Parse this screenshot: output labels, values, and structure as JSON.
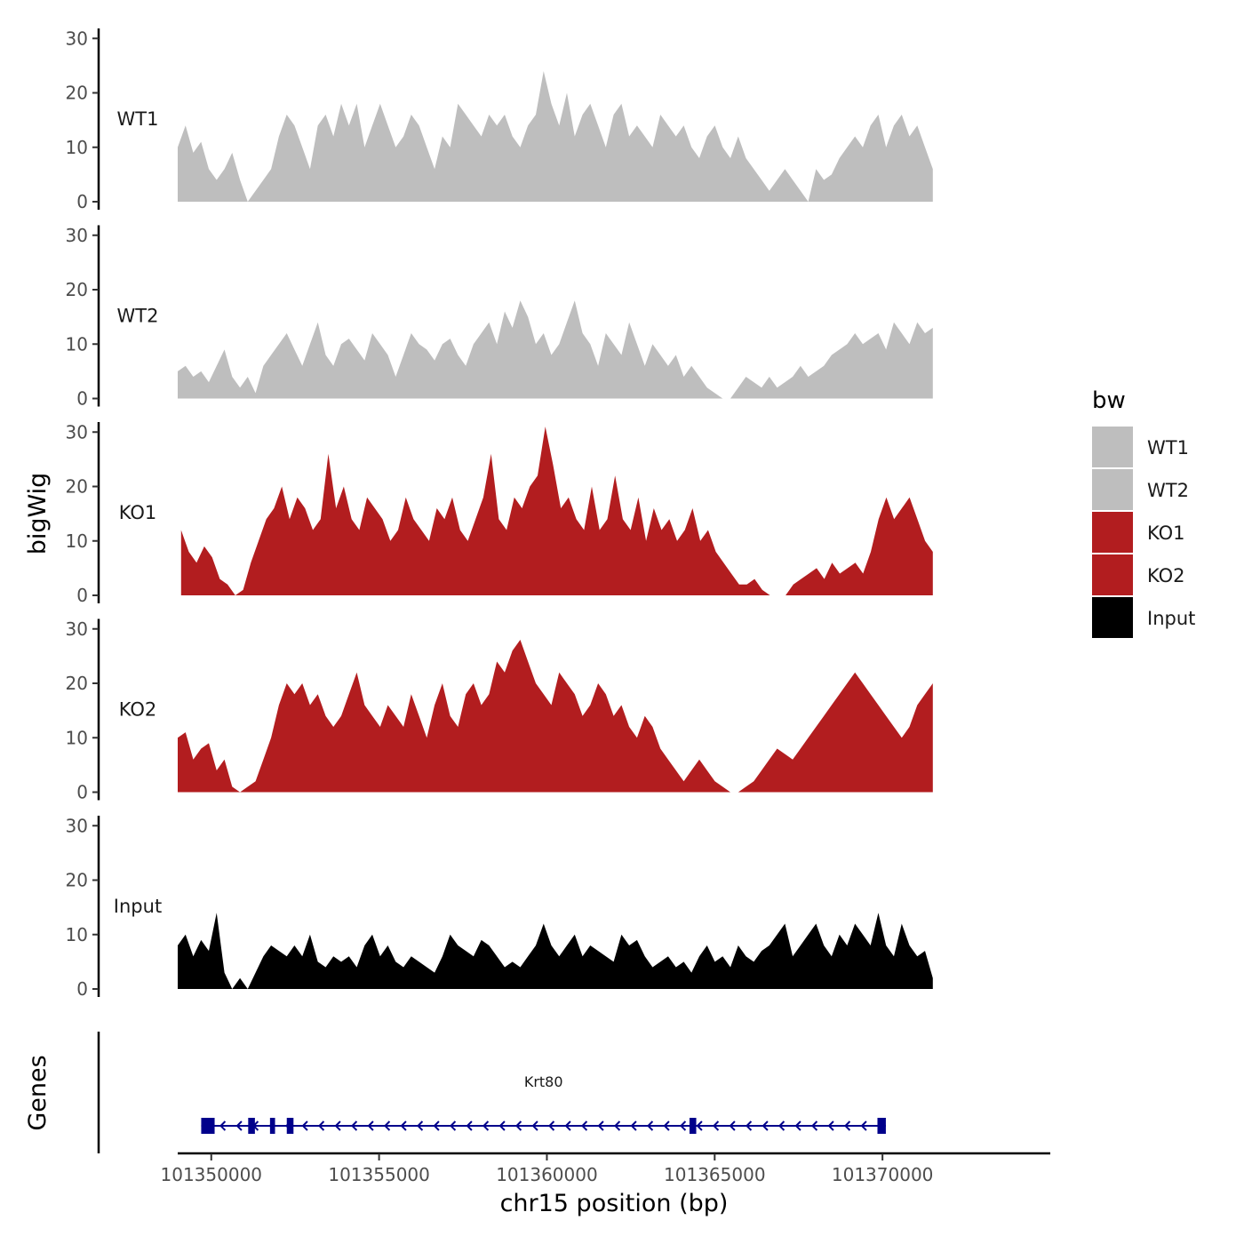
{
  "chart_data": {
    "type": "area",
    "y_axis_title": "bigWig",
    "x_axis_title": "chr15 position (bp)",
    "x_range": [
      101349000,
      101375000
    ],
    "x_ticks": [
      101350000,
      101355000,
      101360000,
      101365000,
      101370000
    ],
    "x_tick_labels": [
      "101350000",
      "101355000",
      "101360000",
      "101365000",
      "101370000"
    ],
    "y_range": [
      0,
      32
    ],
    "y_ticks": [
      0,
      10,
      20,
      30
    ],
    "y_tick_labels": [
      "0",
      "10",
      "20",
      "30"
    ],
    "tracks": [
      {
        "name": "WT1",
        "color": "#bebebe",
        "x_start": 101349000,
        "x_end": 101371500,
        "values": [
          10,
          14,
          9,
          11,
          6,
          4,
          6,
          9,
          4,
          0,
          2,
          4,
          6,
          12,
          16,
          14,
          10,
          6,
          14,
          16,
          12,
          18,
          14,
          18,
          10,
          14,
          18,
          14,
          10,
          12,
          16,
          14,
          10,
          6,
          12,
          10,
          18,
          16,
          14,
          12,
          16,
          14,
          16,
          12,
          10,
          14,
          16,
          24,
          18,
          14,
          20,
          12,
          16,
          18,
          14,
          10,
          16,
          18,
          12,
          14,
          12,
          10,
          16,
          14,
          12,
          14,
          10,
          8,
          12,
          14,
          10,
          8,
          12,
          8,
          6,
          4,
          2,
          4,
          6,
          4,
          2,
          0,
          6,
          4,
          5,
          8,
          10,
          12,
          10,
          14,
          16,
          10,
          14,
          16,
          12,
          14,
          10,
          6
        ]
      },
      {
        "name": "WT2",
        "color": "#bebebe",
        "x_start": 101349000,
        "x_end": 101371500,
        "values": [
          5,
          6,
          4,
          5,
          3,
          6,
          9,
          4,
          2,
          4,
          1,
          6,
          8,
          10,
          12,
          9,
          6,
          10,
          14,
          8,
          6,
          10,
          11,
          9,
          7,
          12,
          10,
          8,
          4,
          8,
          12,
          10,
          9,
          7,
          10,
          11,
          8,
          6,
          10,
          12,
          14,
          10,
          16,
          13,
          18,
          15,
          10,
          12,
          8,
          10,
          14,
          18,
          12,
          10,
          6,
          12,
          10,
          8,
          14,
          10,
          6,
          10,
          8,
          6,
          8,
          4,
          6,
          4,
          2,
          1,
          0,
          0,
          2,
          4,
          3,
          2,
          4,
          2,
          3,
          4,
          6,
          4,
          5,
          6,
          8,
          9,
          10,
          12,
          10,
          11,
          12,
          9,
          14,
          12,
          10,
          14,
          12,
          13
        ]
      },
      {
        "name": "KO1",
        "color": "#b21d1f",
        "x_start": 101349100,
        "x_end": 101371500,
        "values": [
          12,
          8,
          6,
          9,
          7,
          3,
          2,
          0,
          1,
          6,
          10,
          14,
          16,
          20,
          14,
          18,
          16,
          12,
          14,
          26,
          16,
          20,
          14,
          12,
          18,
          16,
          14,
          10,
          12,
          18,
          14,
          12,
          10,
          16,
          14,
          18,
          12,
          10,
          14,
          18,
          26,
          14,
          12,
          18,
          16,
          20,
          22,
          31,
          24,
          16,
          18,
          14,
          12,
          20,
          12,
          14,
          22,
          14,
          12,
          18,
          10,
          16,
          12,
          14,
          10,
          12,
          16,
          10,
          12,
          8,
          6,
          4,
          2,
          2,
          3,
          1,
          0,
          0,
          0,
          2,
          3,
          4,
          5,
          3,
          6,
          4,
          5,
          6,
          4,
          8,
          14,
          18,
          14,
          16,
          18,
          14,
          10,
          8
        ]
      },
      {
        "name": "KO2",
        "color": "#b21d1f",
        "x_start": 101349000,
        "x_end": 101371500,
        "values": [
          10,
          11,
          6,
          8,
          9,
          4,
          6,
          1,
          0,
          1,
          2,
          6,
          10,
          16,
          20,
          18,
          20,
          16,
          18,
          14,
          12,
          14,
          18,
          22,
          16,
          14,
          12,
          16,
          14,
          12,
          18,
          14,
          10,
          16,
          20,
          14,
          12,
          18,
          20,
          16,
          18,
          24,
          22,
          26,
          28,
          24,
          20,
          18,
          16,
          22,
          20,
          18,
          14,
          16,
          20,
          18,
          14,
          16,
          12,
          10,
          14,
          12,
          8,
          6,
          4,
          2,
          4,
          6,
          4,
          2,
          1,
          0,
          0,
          1,
          2,
          4,
          6,
          8,
          7,
          6,
          8,
          10,
          12,
          14,
          16,
          18,
          20,
          22,
          20,
          18,
          16,
          14,
          12,
          10,
          12,
          16,
          18,
          20
        ]
      },
      {
        "name": "Input",
        "color": "#000000",
        "x_start": 101349000,
        "x_end": 101371500,
        "values": [
          8,
          10,
          6,
          9,
          7,
          14,
          3,
          0,
          2,
          0,
          3,
          6,
          8,
          7,
          6,
          8,
          6,
          10,
          5,
          4,
          6,
          5,
          6,
          4,
          8,
          10,
          6,
          8,
          5,
          4,
          6,
          5,
          4,
          3,
          6,
          10,
          8,
          7,
          6,
          9,
          8,
          6,
          4,
          5,
          4,
          6,
          8,
          12,
          8,
          6,
          8,
          10,
          6,
          8,
          7,
          6,
          5,
          10,
          8,
          9,
          6,
          4,
          5,
          6,
          4,
          5,
          3,
          6,
          8,
          5,
          6,
          4,
          8,
          6,
          5,
          7,
          8,
          10,
          12,
          6,
          8,
          10,
          12,
          8,
          6,
          10,
          8,
          12,
          10,
          8,
          14,
          8,
          6,
          12,
          8,
          6,
          7,
          2
        ]
      }
    ],
    "legend": {
      "title": "bw",
      "entries": [
        {
          "label": "WT1",
          "color": "#bebebe"
        },
        {
          "label": "WT2",
          "color": "#bebebe"
        },
        {
          "label": "KO1",
          "color": "#b21d1f"
        },
        {
          "label": "KO2",
          "color": "#b21d1f"
        },
        {
          "label": "Input",
          "color": "#000000"
        }
      ]
    },
    "genes_panel": {
      "title": "Genes",
      "genes": [
        {
          "name": "Krt80",
          "strand": "-",
          "color": "#00008b",
          "start": 101349700,
          "end": 101370100,
          "exons": [
            [
              101349700,
              101350100
            ],
            [
              101351100,
              101351300
            ],
            [
              101351750,
              101351900
            ],
            [
              101352250,
              101352450
            ],
            [
              101364250,
              101364450
            ],
            [
              101369850,
              101370100
            ]
          ]
        }
      ]
    }
  }
}
